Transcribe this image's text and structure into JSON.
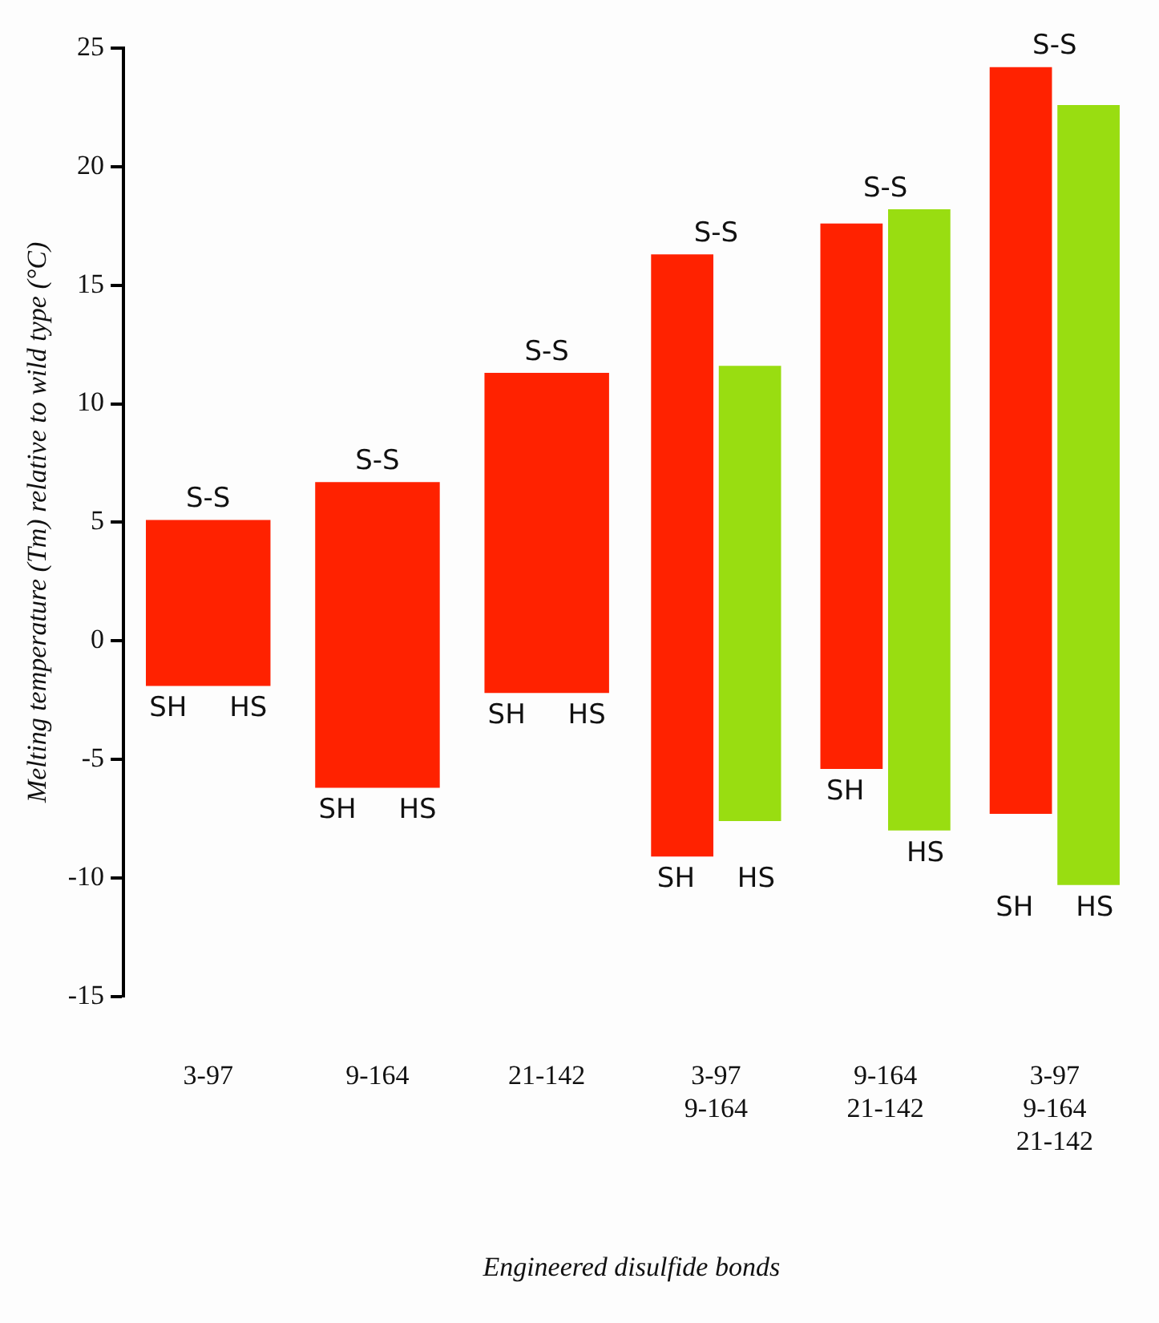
{
  "chart_data": {
    "type": "bar",
    "xlabel": "Engineered disulfide bonds",
    "ylabel": "Melting temperature (Tm) relative to wild type (°C)",
    "categories": [
      "3-97",
      "9-164",
      "21-142",
      "3-97\n9-164",
      "9-164\n21-142",
      "3-97\n9-164\n21-142"
    ],
    "series": [
      {
        "color": "#ff2200",
        "base": [
          -1.9,
          -6.2,
          -2.2,
          -9.1,
          -5.4,
          -7.3
        ],
        "values": [
          7.0,
          12.9,
          13.5,
          25.4,
          23.0,
          31.5
        ]
      },
      {
        "color": "#99dd11",
        "base": [
          null,
          null,
          null,
          -7.6,
          -8.0,
          -10.3
        ],
        "values": [
          null,
          null,
          null,
          19.2,
          26.2,
          32.9
        ]
      }
    ],
    "ylim": [
      -15,
      25
    ],
    "yticks": [
      -15,
      -10,
      -5,
      0,
      5,
      10,
      15,
      20,
      25
    ],
    "grid": false,
    "legend": false,
    "annotations": [
      {
        "text": "S-S",
        "x": "3-97",
        "y": 5.1
      },
      {
        "text": "SH",
        "x": "3-97",
        "y": -1.9
      },
      {
        "text": "HS",
        "x": "3-97",
        "y": -1.9
      },
      {
        "text": "S-S",
        "x": "9-164",
        "y": 6.7
      },
      {
        "text": "SH",
        "x": "9-164",
        "y": -6.2
      },
      {
        "text": "HS",
        "x": "9-164",
        "y": -6.2
      },
      {
        "text": "S-S",
        "x": "21-142",
        "y": 11.3
      },
      {
        "text": "SH",
        "x": "21-142",
        "y": -2.2
      },
      {
        "text": "HS",
        "x": "21-142",
        "y": -2.2
      },
      {
        "text": "S-S",
        "x": "3-97\n9-164",
        "y": 16.3
      },
      {
        "text": "SH",
        "x": "3-97\n9-164",
        "y": -9.1
      },
      {
        "text": "HS",
        "x": "3-97\n9-164",
        "y": -9.1
      },
      {
        "text": "S-S",
        "x": "9-164\n21-142",
        "y": 18.2
      },
      {
        "text": "SH",
        "x": "9-164\n21-142",
        "y": -5.4
      },
      {
        "text": "HS",
        "x": "9-164\n21-142",
        "y": -8.0
      },
      {
        "text": "S-S",
        "x": "3-97\n9-164\n21-142",
        "y": 24.2
      },
      {
        "text": "SH",
        "x": "3-97\n9-164\n21-142",
        "y": -10.3
      },
      {
        "text": "HS",
        "x": "3-97\n9-164\n21-142",
        "y": -10.3
      }
    ]
  }
}
